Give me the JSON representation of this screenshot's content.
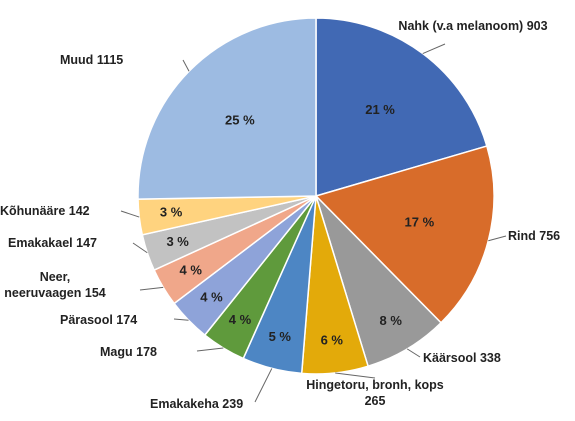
{
  "chart_data": {
    "type": "pie",
    "categories": [
      "Nahk (v.a melanoom)",
      "Rind",
      "Käärsool",
      "Hingetoru, bronh, kops",
      "Emakakeha",
      "Magu",
      "Pärasool",
      "Neer, neeruvaagen",
      "Emakakael",
      "Kõhunääre",
      "Muud"
    ],
    "values": [
      903,
      756,
      338,
      265,
      239,
      178,
      174,
      154,
      147,
      142,
      1115
    ],
    "percent_labels": [
      "21 %",
      "17 %",
      "8 %",
      "6 %",
      "5 %",
      "4 %",
      "4 %",
      "4 %",
      "3 %",
      "3 %",
      "25 %"
    ],
    "colors": [
      "#4169b4",
      "#d86c2a",
      "#999999",
      "#e3aa0a",
      "#4d86c4",
      "#5f9a3c",
      "#8ea3d9",
      "#f0a78a",
      "#c2c2c2",
      "#ffd37f",
      "#9dbbe2"
    ]
  }
}
